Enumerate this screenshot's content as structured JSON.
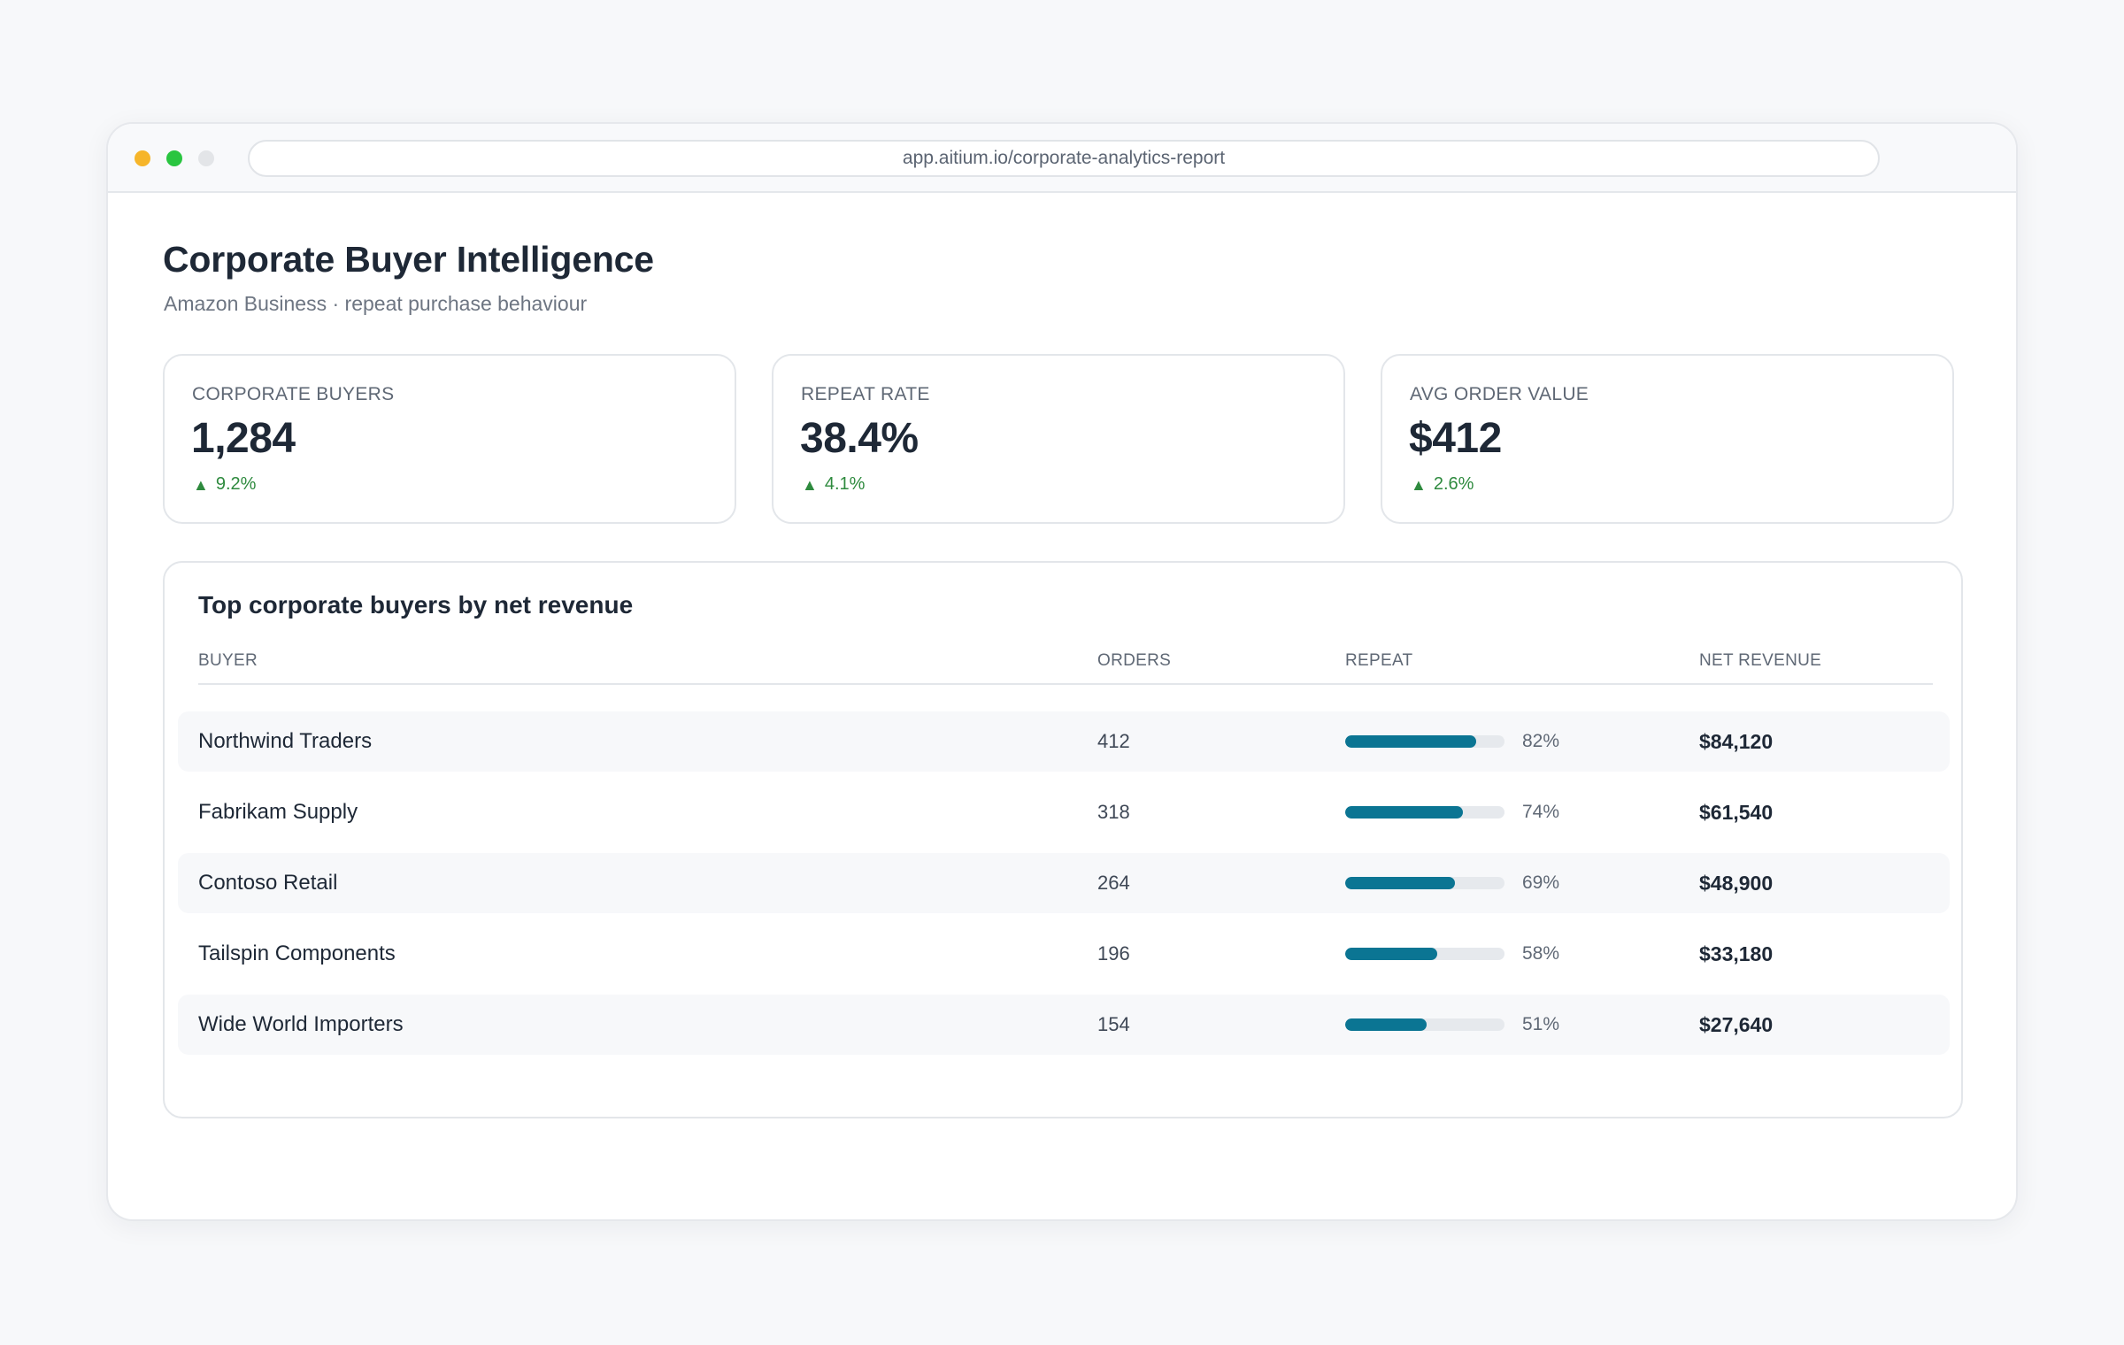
{
  "browser": {
    "url": "app.aitium.io/corporate-analytics-report"
  },
  "header": {
    "title": "Corporate Buyer Intelligence",
    "subtitle": "Amazon Business · repeat purchase behaviour"
  },
  "kpis": [
    {
      "label": "CORPORATE BUYERS",
      "value": "1,284",
      "delta": "9.2%",
      "delta_icon": "triangle-up-icon"
    },
    {
      "label": "REPEAT RATE",
      "value": "38.4%",
      "delta": "4.1%",
      "delta_icon": "triangle-up-icon"
    },
    {
      "label": "AVG ORDER VALUE",
      "value": "$412",
      "delta": "2.6%",
      "delta_icon": "triangle-up-icon"
    }
  ],
  "table": {
    "title": "Top corporate buyers by net revenue",
    "columns": [
      "BUYER",
      "ORDERS",
      "REPEAT",
      "NET REVENUE"
    ],
    "rows": [
      {
        "buyer": "Northwind Traders",
        "orders": "412",
        "repeat_pct": "82%",
        "repeat_value": 0.82,
        "revenue": "$84,120"
      },
      {
        "buyer": "Fabrikam Supply",
        "orders": "318",
        "repeat_pct": "74%",
        "repeat_value": 0.74,
        "revenue": "$61,540"
      },
      {
        "buyer": "Contoso Retail",
        "orders": "264",
        "repeat_pct": "69%",
        "repeat_value": 0.69,
        "revenue": "$48,900"
      },
      {
        "buyer": "Tailspin Components",
        "orders": "196",
        "repeat_pct": "58%",
        "repeat_value": 0.58,
        "revenue": "$33,180"
      },
      {
        "buyer": "Wide World Importers",
        "orders": "154",
        "repeat_pct": "51%",
        "repeat_value": 0.51,
        "revenue": "$27,640"
      }
    ]
  },
  "colors": {
    "accent": "#0b7593",
    "positive": "#2e8a3e",
    "traffic_yellow": "#f6b52a",
    "traffic_green": "#29c540",
    "traffic_gray": "#e3e5e8"
  }
}
